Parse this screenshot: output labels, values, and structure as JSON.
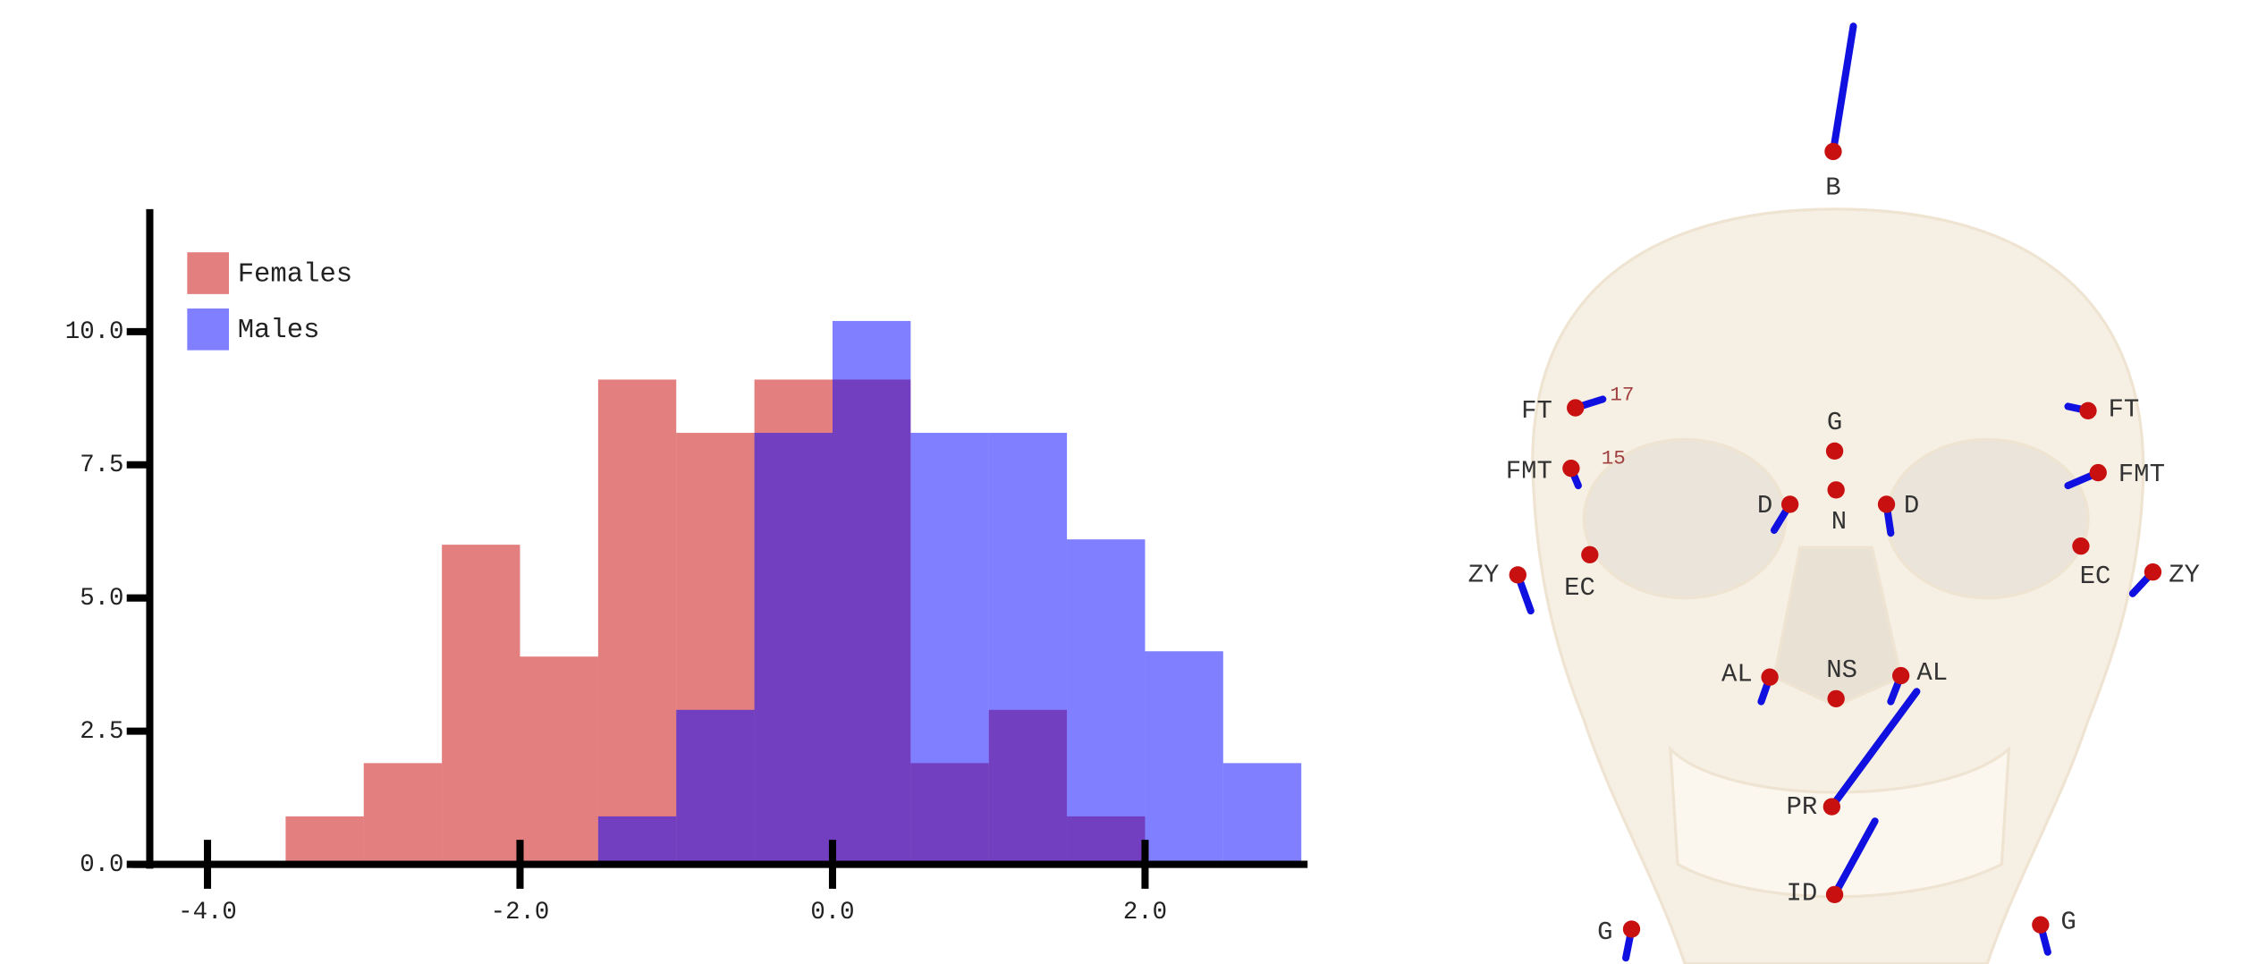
{
  "chart_data": {
    "type": "histogram",
    "legend": "upper left",
    "bins": [
      -3.5,
      -3.0,
      -2.5,
      -2.0,
      -1.5,
      -1.0,
      -0.5,
      0.0,
      0.5,
      1.0,
      1.5,
      2.0,
      2.5,
      3.0
    ],
    "series": [
      {
        "name": "Females",
        "color": "#c80000",
        "values": [
          0.9,
          1.9,
          6.0,
          3.9,
          9.1,
          8.1,
          9.1,
          9.1,
          1.9,
          2.9,
          0.9,
          0,
          0
        ]
      },
      {
        "name": "Males",
        "color": "#0000ff",
        "values": [
          0,
          0,
          0,
          0,
          0.9,
          2.9,
          8.1,
          10.2,
          8.1,
          8.1,
          6.1,
          4.0,
          1.9
        ]
      }
    ],
    "xlim": [
      -4.48,
      3.04
    ],
    "ylim": [
      0,
      12.3
    ],
    "xticks": [
      {
        "value": -4,
        "label": "-4.0"
      },
      {
        "value": -2,
        "label": "-2.0"
      },
      {
        "value": 0,
        "label": "0.0"
      },
      {
        "value": 2,
        "label": "2.0"
      }
    ],
    "yticks": [
      {
        "value": 0,
        "label": "0.0"
      },
      2.5,
      {
        "value": 5,
        "label": "5.0"
      },
      7.5,
      {
        "value": 10,
        "label": "10.0"
      }
    ]
  },
  "diagram": {
    "landmarks": [
      "B",
      "FT",
      "FMT",
      "G",
      "N",
      "D",
      "D",
      "FT",
      "FMT",
      "ZY",
      "EC",
      "EC",
      "ZY",
      "AL",
      "NS",
      "AL",
      "PR",
      "ID",
      "G",
      "G"
    ],
    "annotations": [
      "17",
      "15"
    ]
  }
}
